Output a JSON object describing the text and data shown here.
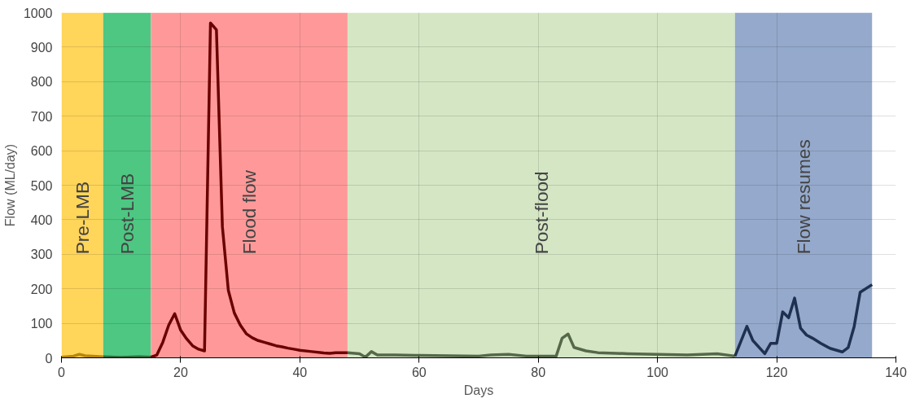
{
  "chart_data": {
    "type": "line",
    "xlabel": "Days",
    "ylabel": "Flow (ML/day)",
    "xlim": [
      0,
      140
    ],
    "ylim": [
      0,
      1000
    ],
    "xticks": [
      0,
      20,
      40,
      60,
      80,
      100,
      120,
      140
    ],
    "yticks": [
      0,
      100,
      200,
      300,
      400,
      500,
      600,
      700,
      800,
      900,
      1000
    ],
    "grid": true,
    "line_style": "solid",
    "marker": "none",
    "bands": [
      {
        "axis": "x",
        "from": 0,
        "to": 7,
        "label": "Pre-LMB",
        "color": "#ffd55a"
      },
      {
        "axis": "x",
        "from": 7,
        "to": 15,
        "label": "Post-LMB",
        "color": "#4dc782"
      },
      {
        "axis": "x",
        "from": 15,
        "to": 48,
        "label": "Flood flow",
        "color": "#ff9999"
      },
      {
        "axis": "x",
        "from": 48,
        "to": 113,
        "label": "Post-flood",
        "color": "#d4e6c4"
      },
      {
        "axis": "x",
        "from": 113,
        "to": 136,
        "label": "Flow resumes",
        "color": "#94a9cb"
      }
    ],
    "series": [
      {
        "color": "#b8860b",
        "x": [
          0,
          2,
          3,
          4,
          7
        ],
        "values": [
          2,
          5,
          10,
          6,
          3
        ]
      },
      {
        "color": "#2e6b3e",
        "x": [
          7,
          10,
          13,
          15
        ],
        "values": [
          3,
          1,
          3,
          2
        ]
      },
      {
        "color": "#6b0000",
        "x": [
          15,
          16,
          17,
          18,
          19,
          20,
          21,
          22,
          23,
          24,
          25,
          26,
          27,
          28,
          29,
          30,
          31,
          32,
          33,
          34,
          35,
          36,
          37,
          38,
          39,
          40,
          42,
          44,
          45,
          46,
          48
        ],
        "values": [
          2,
          8,
          45,
          95,
          128,
          80,
          55,
          35,
          25,
          20,
          970,
          950,
          380,
          195,
          130,
          95,
          70,
          58,
          50,
          45,
          40,
          35,
          32,
          28,
          25,
          22,
          18,
          14,
          13,
          15,
          15
        ]
      },
      {
        "color": "#56684a",
        "x": [
          48,
          50,
          51,
          52,
          53,
          56,
          60,
          65,
          70,
          72,
          75,
          78,
          83,
          84,
          85,
          86,
          88,
          90,
          95,
          100,
          105,
          110,
          113
        ],
        "values": [
          15,
          12,
          2,
          18,
          8,
          8,
          7,
          6,
          5,
          8,
          10,
          5,
          5,
          57,
          69,
          30,
          20,
          15,
          12,
          10,
          8,
          12,
          5
        ]
      },
      {
        "color": "#1f3050",
        "x": [
          113,
          115,
          116,
          118,
          119,
          120,
          121,
          122,
          123,
          124,
          125,
          126,
          127.4,
          129,
          131,
          132,
          133,
          134,
          136
        ],
        "values": [
          5,
          91,
          50,
          12,
          42,
          42,
          133,
          116,
          173,
          86,
          66,
          57,
          42,
          27,
          17,
          30,
          91,
          190,
          212
        ]
      }
    ]
  }
}
